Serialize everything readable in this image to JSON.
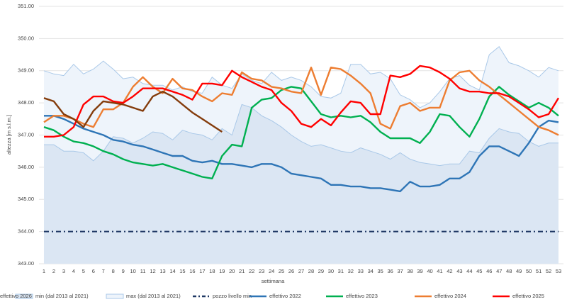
{
  "chart_data": {
    "type": "line",
    "x_label": "settimana",
    "y_label": "altezza [m s.l.m.]",
    "categories": [
      1,
      2,
      3,
      4,
      5,
      6,
      7,
      8,
      9,
      10,
      11,
      12,
      13,
      14,
      15,
      16,
      17,
      18,
      19,
      20,
      21,
      22,
      23,
      24,
      25,
      26,
      27,
      28,
      29,
      30,
      31,
      32,
      33,
      34,
      35,
      36,
      37,
      38,
      39,
      40,
      41,
      42,
      43,
      44,
      45,
      46,
      47,
      48,
      49,
      50,
      51,
      52,
      53
    ],
    "ylim": [
      343,
      351
    ],
    "yticks": [
      {
        "value": 343,
        "label": "343.00"
      },
      {
        "value": 344,
        "label": "344.00"
      },
      {
        "value": 345,
        "label": "345.00"
      },
      {
        "value": 346,
        "label": "346.00"
      },
      {
        "value": 347,
        "label": "347.00"
      },
      {
        "value": 348,
        "label": "348.00"
      },
      {
        "value": 349,
        "label": "349.00"
      },
      {
        "value": 350,
        "label": "350.00"
      },
      {
        "value": 351,
        "label": "351.00"
      }
    ],
    "grid": true,
    "legend": "bottom",
    "series": [
      {
        "name": "min (dal 2013 al 2021)",
        "style": "area",
        "color": "#dbe6f3",
        "line_color": "#a9c8e8",
        "values": [
          346.7,
          346.7,
          346.5,
          346.5,
          346.45,
          346.2,
          346.5,
          346.95,
          346.9,
          346.75,
          346.9,
          347.1,
          347.05,
          346.85,
          347.15,
          347.05,
          347.0,
          346.85,
          347.2,
          347.0,
          347.95,
          347.85,
          347.6,
          347.45,
          347.25,
          347.0,
          346.8,
          346.65,
          346.7,
          346.6,
          346.5,
          346.45,
          346.6,
          346.5,
          346.4,
          346.25,
          346.45,
          346.25,
          346.15,
          346.1,
          346.05,
          346.1,
          346.1,
          346.5,
          346.45,
          346.9,
          347.2,
          347.1,
          347.05,
          346.8,
          346.65,
          346.75,
          346.75
        ]
      },
      {
        "name": "max (dal 2013 al 2021)",
        "style": "area",
        "color": "#eef4fb",
        "line_color": "#a9c8e8",
        "values": [
          349.0,
          348.9,
          348.85,
          349.2,
          348.9,
          349.05,
          349.3,
          349.05,
          348.75,
          348.8,
          348.6,
          348.55,
          348.55,
          348.4,
          348.5,
          348.35,
          348.3,
          348.8,
          348.55,
          348.45,
          348.9,
          348.7,
          348.6,
          348.95,
          348.7,
          348.8,
          348.7,
          348.5,
          348.2,
          348.15,
          348.3,
          349.2,
          349.2,
          348.9,
          348.95,
          348.75,
          348.25,
          348.1,
          347.85,
          348.0,
          348.35,
          348.75,
          348.85,
          348.55,
          348.4,
          349.5,
          349.75,
          349.25,
          349.15,
          349.0,
          348.8,
          349.1,
          349.0
        ]
      },
      {
        "name": "pozzo livello min",
        "style": "dashdot",
        "color": "#1f3864",
        "values": [
          344,
          344,
          344,
          344,
          344,
          344,
          344,
          344,
          344,
          344,
          344,
          344,
          344,
          344,
          344,
          344,
          344,
          344,
          344,
          344,
          344,
          344,
          344,
          344,
          344,
          344,
          344,
          344,
          344,
          344,
          344,
          344,
          344,
          344,
          344,
          344,
          344,
          344,
          344,
          344,
          344,
          344,
          344,
          344,
          344,
          344,
          344,
          344,
          344,
          344,
          344,
          344,
          344
        ]
      },
      {
        "name": "effettivo 2022",
        "style": "line",
        "color": "#2e75b6",
        "values": [
          347.6,
          347.6,
          347.5,
          347.35,
          347.2,
          347.1,
          347.0,
          346.85,
          346.8,
          346.7,
          346.65,
          346.55,
          346.45,
          346.35,
          346.35,
          346.2,
          346.15,
          346.2,
          346.1,
          346.1,
          346.05,
          346.0,
          346.1,
          346.1,
          346.0,
          345.8,
          345.75,
          345.7,
          345.65,
          345.45,
          345.45,
          345.4,
          345.4,
          345.35,
          345.35,
          345.3,
          345.25,
          345.55,
          345.4,
          345.4,
          345.45,
          345.65,
          345.65,
          345.85,
          346.35,
          346.65,
          346.65,
          346.5,
          346.35,
          346.75,
          347.25,
          347.45,
          347.4
        ]
      },
      {
        "name": "effettivo 2023",
        "style": "line",
        "color": "#00b050",
        "values": [
          347.25,
          347.15,
          346.95,
          346.8,
          346.75,
          346.65,
          346.5,
          346.4,
          346.25,
          346.15,
          346.1,
          346.05,
          346.1,
          346.0,
          345.9,
          345.8,
          345.7,
          345.65,
          346.35,
          346.7,
          346.65,
          347.85,
          348.1,
          348.15,
          348.4,
          348.5,
          348.45,
          348.05,
          347.65,
          347.55,
          347.6,
          347.55,
          347.6,
          347.4,
          347.1,
          346.9,
          346.9,
          346.9,
          346.75,
          347.1,
          347.65,
          347.6,
          347.25,
          346.95,
          347.5,
          348.2,
          348.5,
          348.25,
          348.05,
          347.85,
          348.0,
          347.85,
          347.6
        ]
      },
      {
        "name": "effettivo 2024",
        "style": "line",
        "color": "#ed7d31",
        "values": [
          347.4,
          347.6,
          347.6,
          347.5,
          347.35,
          347.25,
          347.8,
          347.8,
          348.0,
          348.5,
          348.8,
          348.5,
          348.3,
          348.75,
          348.45,
          348.4,
          348.2,
          348.05,
          348.3,
          348.25,
          348.95,
          348.75,
          348.7,
          348.5,
          348.45,
          348.35,
          348.3,
          349.1,
          348.25,
          349.1,
          349.05,
          348.85,
          348.6,
          348.3,
          347.35,
          347.2,
          347.9,
          348.0,
          347.75,
          347.85,
          347.85,
          348.7,
          348.95,
          349.0,
          348.7,
          348.5,
          348.25,
          348.0,
          347.75,
          347.5,
          347.25,
          347.15,
          347.0
        ]
      },
      {
        "name": "effettivo 2025",
        "style": "line",
        "color": "#ff0000",
        "values": [
          346.95,
          346.95,
          347.0,
          347.25,
          347.95,
          348.2,
          348.2,
          348.05,
          348.0,
          348.2,
          348.45,
          348.45,
          348.45,
          348.35,
          348.25,
          348.1,
          348.6,
          348.6,
          348.55,
          349.0,
          348.8,
          348.65,
          348.5,
          348.4,
          348.0,
          347.75,
          347.35,
          347.25,
          347.5,
          347.3,
          347.7,
          348.05,
          348.0,
          347.65,
          347.65,
          348.85,
          348.8,
          348.9,
          349.15,
          349.1,
          348.95,
          348.75,
          348.45,
          348.35,
          348.35,
          348.3,
          348.3,
          348.2,
          348.0,
          347.8,
          347.55,
          347.65,
          348.15
        ]
      },
      {
        "name": "effettivo 2026",
        "style": "line",
        "color": "#843c0c",
        "values": [
          348.15,
          348.05,
          347.65,
          347.5,
          347.25,
          347.75,
          348.05,
          348.0,
          347.95,
          347.85,
          347.75,
          348.2,
          348.35,
          348.2,
          347.95,
          347.7,
          347.5,
          347.3,
          347.1,
          null,
          null,
          null,
          null,
          null,
          null,
          null,
          null,
          null,
          null,
          null,
          null,
          null,
          null,
          null,
          null,
          null,
          null,
          null,
          null,
          null,
          null,
          null,
          null,
          null,
          null,
          null,
          null,
          null,
          null,
          null,
          null,
          null,
          null
        ]
      }
    ]
  }
}
